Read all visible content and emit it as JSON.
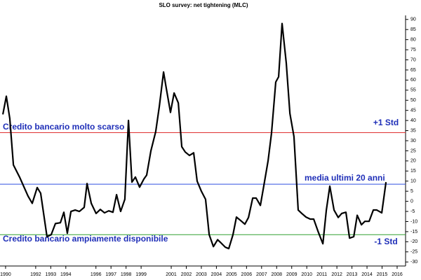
{
  "chart_data": {
    "type": "line",
    "title": "SLO survey: net tightening (MLC)",
    "x": [
      1989.82,
      1990.05,
      1990.28,
      1990.52,
      1990.93,
      1991.49,
      1991.77,
      1992.1,
      1992.33,
      1992.75,
      1993.03,
      1993.31,
      1993.64,
      1993.87,
      1994.1,
      1994.34,
      1994.62,
      1994.9,
      1995.22,
      1995.41,
      1995.69,
      1996.01,
      1996.29,
      1996.57,
      1996.85,
      1997.13,
      1997.37,
      1997.64,
      1997.92,
      1998.16,
      1998.39,
      1998.62,
      1998.9,
      1999.18,
      1999.37,
      1999.65,
      1999.97,
      2000.21,
      2000.49,
      2000.67,
      2000.95,
      2001.19,
      2001.47,
      2001.7,
      2001.93,
      2002.21,
      2002.49,
      2002.72,
      2003.0,
      2003.28,
      2003.52,
      2003.8,
      2004.08,
      2004.31,
      2004.59,
      2004.82,
      2005.1,
      2005.33,
      2005.61,
      2005.89,
      2006.13,
      2006.41,
      2006.64,
      2006.92,
      2007.15,
      2007.43,
      2007.66,
      2007.94,
      2008.13,
      2008.36,
      2008.64,
      2008.88,
      2009.15,
      2009.43,
      2009.67,
      2009.95,
      2010.23,
      2010.46,
      2010.74,
      2011.07,
      2011.3,
      2011.53,
      2011.81,
      2012.09,
      2012.32,
      2012.6,
      2012.84,
      2013.12,
      2013.35,
      2013.63,
      2013.86,
      2014.14,
      2014.42,
      2014.65,
      2014.98,
      2015.26
    ],
    "series": [
      {
        "name": "SLO survey: net tightening (MLC)",
        "color": "#000000",
        "values": [
          43,
          52,
          41,
          18,
          12,
          2.6,
          -1,
          6.8,
          4,
          -17.5,
          -16.5,
          -11,
          -10.6,
          -5.4,
          -15.8,
          -5,
          -4.3,
          -5,
          -3,
          8.8,
          -1,
          -6,
          -4,
          -5.7,
          -4.7,
          -5.4,
          3.3,
          -5,
          1,
          40,
          9.5,
          12,
          7,
          11,
          13,
          25,
          34.5,
          47,
          64,
          56,
          44,
          53.6,
          48.7,
          27,
          24.4,
          22.7,
          24,
          10,
          5,
          1,
          -16.5,
          -22.4,
          -19,
          -20.6,
          -22.7,
          -23.4,
          -16.5,
          -7.8,
          -9.5,
          -11.3,
          -8,
          1.6,
          1.6,
          -2,
          7.8,
          20,
          33.8,
          59,
          61.6,
          88,
          68.3,
          43.5,
          32,
          -4.3,
          -6,
          -7.8,
          -8.8,
          -8.8,
          -14.7,
          -21,
          -4.3,
          7.5,
          -4.3,
          -8,
          -6,
          -5.4,
          -18.2,
          -17.5,
          -6.9,
          -11.6,
          -9.9,
          -9.9,
          -4.3,
          -4.3,
          -5.7,
          9.5
        ]
      }
    ],
    "reference_lines": [
      {
        "value": 34,
        "color": "#e03030"
      },
      {
        "value": 8.5,
        "color": "#3050e0"
      },
      {
        "value": -16.5,
        "color": "#30a030"
      }
    ],
    "annotations": [
      "Credito bancario molto scarso",
      "+1 Std",
      "media ultimi 20 anni",
      "Credito bancario ampiamente disponibile",
      "-1 Std"
    ],
    "xlim": [
      1989.63,
      2016.56
    ],
    "xticks": [
      1990,
      1992,
      1993,
      1994,
      1996,
      1997,
      1998,
      1999,
      2001,
      2002,
      2003,
      2004,
      2005,
      2006,
      2007,
      2008,
      2009,
      2010,
      2011,
      2012,
      2013,
      2014,
      2015,
      2016
    ],
    "ylim": [
      -32,
      92
    ],
    "yticks": [
      -30,
      -25,
      -20,
      -15,
      -10,
      -5,
      0,
      5,
      10,
      15,
      20,
      25,
      30,
      35,
      40,
      45,
      50,
      55,
      60,
      65,
      70,
      75,
      80,
      85,
      90
    ]
  }
}
